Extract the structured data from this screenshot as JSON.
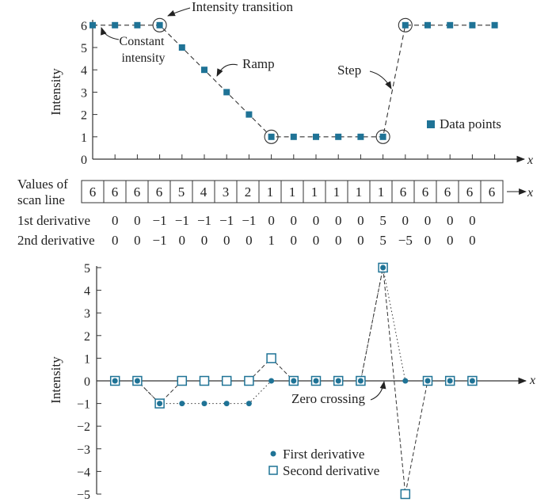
{
  "chart_data": [
    {
      "type": "scatter",
      "ylabel": "Intensity",
      "xlabel": "x",
      "ylim": [
        0,
        6
      ],
      "yticks": [
        0,
        1,
        2,
        3,
        4,
        5,
        6
      ],
      "x": [
        0,
        1,
        2,
        3,
        4,
        5,
        6,
        7,
        8,
        9,
        10,
        11,
        12,
        13,
        14,
        15,
        16,
        17,
        18
      ],
      "series": [
        {
          "name": "Data points",
          "values": [
            6,
            6,
            6,
            6,
            5,
            4,
            3,
            2,
            1,
            1,
            1,
            1,
            1,
            1,
            6,
            6,
            6,
            6,
            6
          ]
        }
      ],
      "legend": "right",
      "circled_points": [
        3,
        8,
        13,
        14
      ],
      "annotations": {
        "intensity_transition": "Intensity transition",
        "constant_intensity": "Constant\nintensity",
        "ramp": "Ramp",
        "step": "Step"
      }
    },
    {
      "type": "table",
      "row_label": "Values of\nscan line",
      "x_label": "x",
      "values": [
        "6",
        "6",
        "6",
        "6",
        "5",
        "4",
        "3",
        "2",
        "1",
        "1",
        "1",
        "1",
        "1",
        "1",
        "6",
        "6",
        "6",
        "6",
        "6"
      ],
      "first_derivative_label": "1st derivative",
      "first_derivative": [
        "0",
        "0",
        "−1",
        "−1",
        "−1",
        "−1",
        "−1",
        "0",
        "0",
        "0",
        "0",
        "0",
        "5",
        "0",
        "0",
        "0",
        "0"
      ],
      "second_derivative_label": "2nd derivative",
      "second_derivative": [
        "0",
        "0",
        "−1",
        "0",
        "0",
        "0",
        "0",
        "1",
        "0",
        "0",
        "0",
        "0",
        "5",
        "−5",
        "0",
        "0",
        "0"
      ]
    },
    {
      "type": "scatter",
      "ylabel": "Intensity",
      "xlabel": "x",
      "ylim": [
        -5,
        5
      ],
      "yticks": [
        -5,
        -4,
        -3,
        -2,
        -1,
        0,
        1,
        2,
        3,
        4,
        5
      ],
      "x": [
        1,
        2,
        3,
        4,
        5,
        6,
        7,
        8,
        9,
        10,
        11,
        12,
        13,
        14,
        15,
        16,
        17
      ],
      "series": [
        {
          "name": "First derivative",
          "values": [
            0,
            0,
            -1,
            -1,
            -1,
            -1,
            -1,
            0,
            0,
            0,
            0,
            0,
            5,
            0,
            0,
            0,
            0
          ]
        },
        {
          "name": "Second derivative",
          "values": [
            0,
            0,
            -1,
            0,
            0,
            0,
            0,
            1,
            0,
            0,
            0,
            0,
            5,
            -5,
            0,
            0,
            0
          ]
        }
      ],
      "legend": "bottom-right",
      "annotations": {
        "zero_crossing": "Zero crossing"
      }
    }
  ],
  "colors": {
    "marker": "#1f7396",
    "line": "#333333"
  }
}
